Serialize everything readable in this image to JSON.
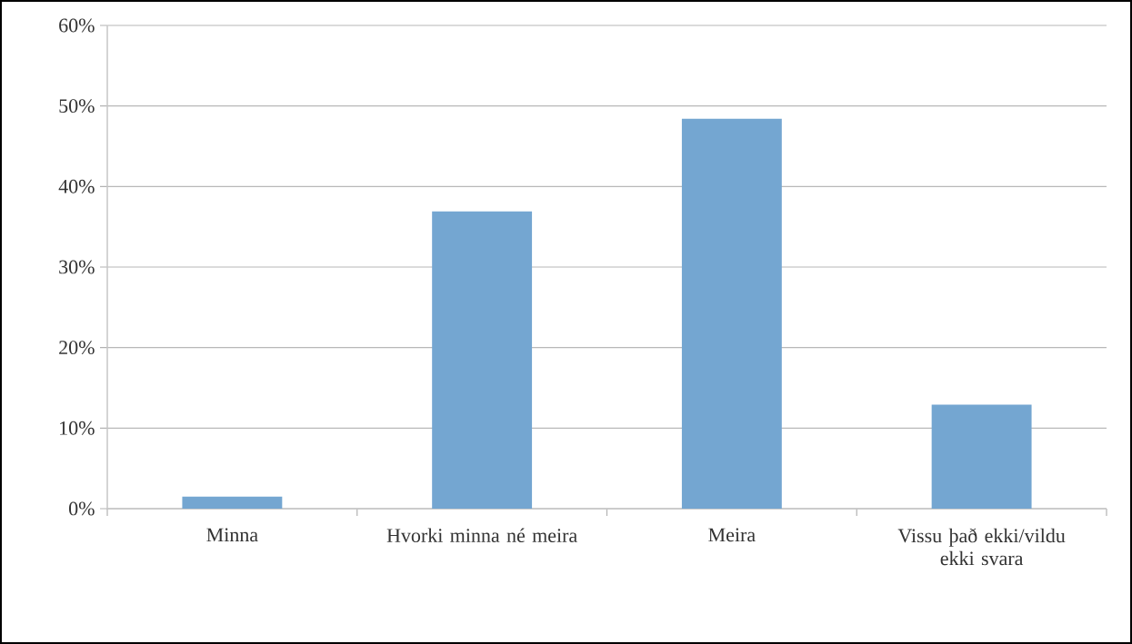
{
  "chart_data": {
    "type": "bar",
    "categories": [
      "Minna",
      "Hvorki minna né meira",
      "Meira",
      "Vissu það ekki/vildu ekki svara"
    ],
    "values": [
      1.5,
      36.9,
      48.4,
      12.9
    ],
    "color": "#74a6d1",
    "ylim": [
      0,
      60
    ],
    "yticks": [
      {
        "value": 0,
        "label": "0%"
      },
      {
        "value": 10,
        "label": "10%"
      },
      {
        "value": 20,
        "label": "20%"
      },
      {
        "value": 30,
        "label": "30%"
      },
      {
        "value": 40,
        "label": "40%"
      },
      {
        "value": 50,
        "label": "50%"
      },
      {
        "value": 60,
        "label": "60%"
      }
    ],
    "grid": "y"
  }
}
